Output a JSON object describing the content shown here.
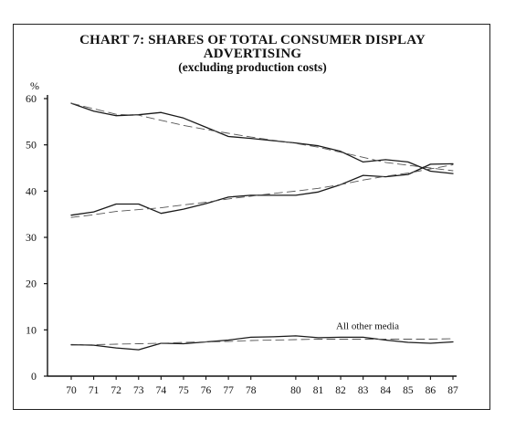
{
  "title_lines": [
    "CHART 7:   SHARES OF TOTAL CONSUMER DISPLAY",
    "ADVERTISING"
  ],
  "subtitle": "(excluding production costs)",
  "chart_data": {
    "type": "line",
    "title": "CHART 7:   SHARES OF TOTAL CONSUMER DISPLAY ADVERTISING",
    "subtitle": "(excluding production costs)",
    "ylabel": "%",
    "xlabel": "",
    "ylim": [
      0,
      60
    ],
    "yticks": [
      0,
      10,
      20,
      30,
      40,
      50,
      60
    ],
    "x_ticks": [
      70,
      71,
      72,
      73,
      74,
      75,
      76,
      77,
      78,
      80,
      81,
      82,
      83,
      84,
      85,
      86,
      87
    ],
    "xlim": [
      70,
      87
    ],
    "grid": false,
    "series": [
      {
        "style": "solid",
        "x": [
          70,
          71,
          72,
          73,
          74,
          75,
          76,
          77,
          78,
          79,
          80,
          81,
          82,
          83,
          84,
          85,
          86,
          87
        ],
        "values": [
          59,
          57.3,
          56.3,
          56.5,
          57,
          55.8,
          53.8,
          51.8,
          51.4,
          50.9,
          50.4,
          49.8,
          48.6,
          46.3,
          46.8,
          46.3,
          44.3,
          43.8
        ]
      },
      {
        "style": "dashed",
        "x": [
          70,
          71,
          72,
          73,
          74,
          75,
          76,
          77,
          78,
          79,
          80,
          81,
          82,
          83,
          84,
          85,
          86,
          87
        ],
        "values": [
          59,
          57.8,
          56.6,
          56.4,
          55.3,
          54.2,
          53.3,
          52.5,
          51.7,
          51,
          50.3,
          49.5,
          48.4,
          47.3,
          46.2,
          45.6,
          45,
          44.4
        ]
      },
      {
        "style": "solid",
        "x": [
          70,
          71,
          72,
          73,
          74,
          75,
          76,
          77,
          78,
          79,
          80,
          81,
          82,
          83,
          84,
          85,
          86,
          87
        ],
        "values": [
          34.8,
          35.5,
          37.2,
          37.2,
          35.2,
          36.1,
          37.3,
          38.7,
          39.1,
          39.1,
          39.1,
          39.8,
          41.4,
          43.4,
          43.1,
          43.6,
          45.8,
          45.9
        ]
      },
      {
        "style": "dashed",
        "x": [
          70,
          71,
          72,
          73,
          74,
          75,
          76,
          77,
          78,
          79,
          80,
          81,
          82,
          83,
          84,
          85,
          86,
          87
        ],
        "values": [
          34.3,
          34.9,
          35.6,
          36,
          36.4,
          37,
          37.6,
          38.3,
          38.9,
          39.5,
          40,
          40.6,
          41.4,
          42.4,
          43.2,
          43.9,
          44.8,
          45.7
        ]
      },
      {
        "name": "All other media",
        "style": "solid",
        "x": [
          70,
          71,
          72,
          73,
          74,
          75,
          76,
          77,
          78,
          79,
          80,
          81,
          82,
          83,
          84,
          85,
          86,
          87
        ],
        "values": [
          6.8,
          6.7,
          6.1,
          5.7,
          7.1,
          7,
          7.4,
          7.8,
          8.4,
          8.5,
          8.7,
          8.3,
          8.4,
          8.4,
          7.8,
          7.3,
          7.1,
          7.4
        ]
      },
      {
        "style": "dashed",
        "x": [
          70,
          71,
          72,
          73,
          74,
          75,
          76,
          77,
          78,
          79,
          80,
          81,
          82,
          83,
          84,
          85,
          86,
          87
        ],
        "values": [
          6.7,
          6.8,
          6.9,
          7,
          7.1,
          7.3,
          7.4,
          7.5,
          7.7,
          7.8,
          7.9,
          8,
          8,
          8,
          8,
          8,
          8,
          8.1
        ]
      }
    ],
    "annotations": [
      {
        "text": "All other media",
        "x": 83.2,
        "y": 10.2
      }
    ]
  }
}
